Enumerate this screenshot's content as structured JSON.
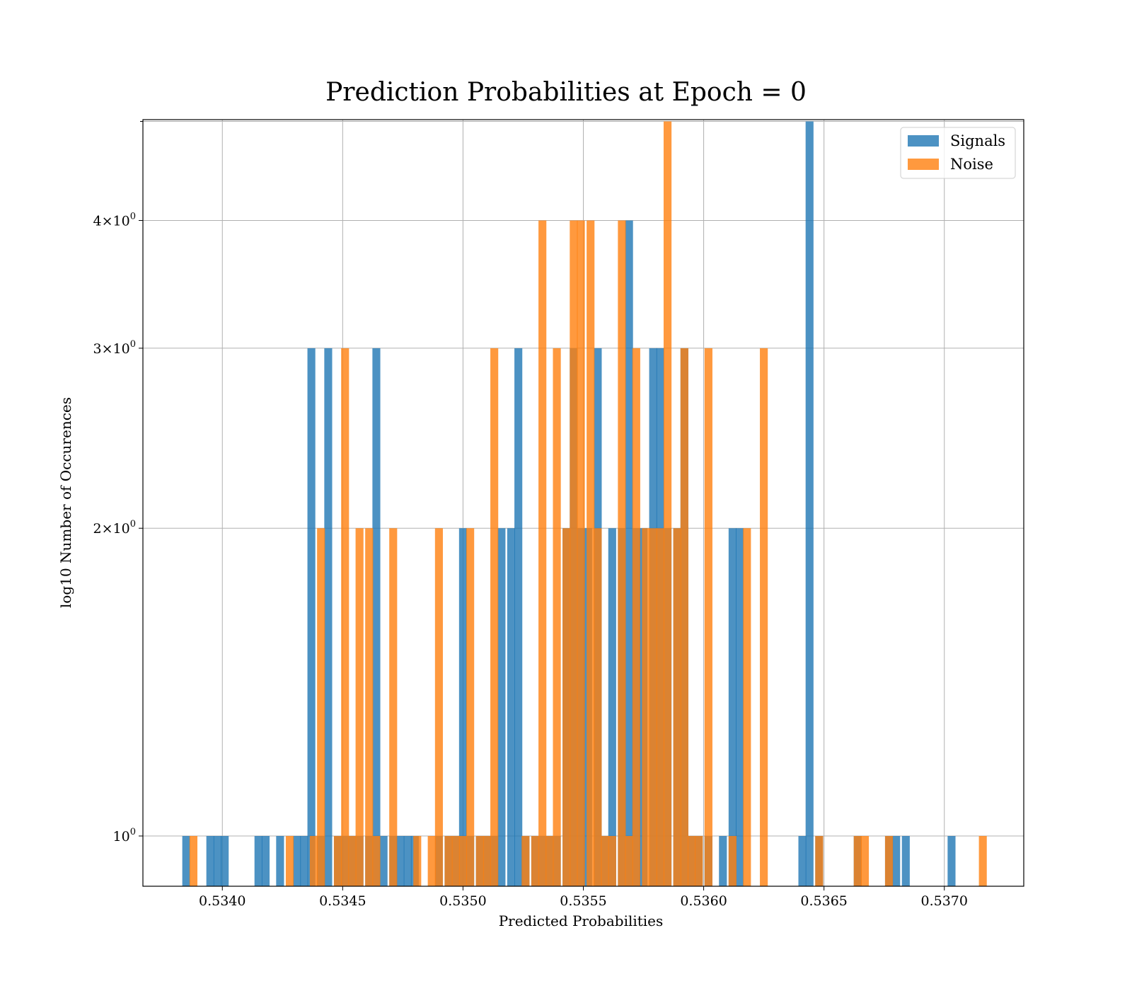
{
  "chart_data": {
    "type": "bar",
    "title": "Prediction Probabilities at Epoch = 0",
    "xlabel": "Predicted Probabilities",
    "ylabel": "log10 Number of Occurences",
    "xlim": [
      0.53367,
      0.53733
    ],
    "ylim": [
      0.893,
      5.02
    ],
    "yscale": "log",
    "grid": true,
    "bin_width": 3.28e-05,
    "xticks": [
      {
        "value": 0.534,
        "label": "0.5340"
      },
      {
        "value": 0.5345,
        "label": "0.5345"
      },
      {
        "value": 0.535,
        "label": "0.5350"
      },
      {
        "value": 0.5355,
        "label": "0.5355"
      },
      {
        "value": 0.536,
        "label": "0.5360"
      },
      {
        "value": 0.5365,
        "label": "0.5365"
      },
      {
        "value": 0.537,
        "label": "0.5370"
      }
    ],
    "yticks": [
      {
        "value": 1,
        "label": "10⁰",
        "base": "10",
        "exp": "0"
      },
      {
        "value": 2,
        "label": "2×10⁰",
        "mant": "2",
        "base": "10",
        "exp": "0"
      },
      {
        "value": 3,
        "label": "3×10⁰",
        "mant": "3",
        "base": "10",
        "exp": "0"
      },
      {
        "value": 4,
        "label": "4×10⁰",
        "mant": "4",
        "base": "10",
        "exp": "0"
      }
    ],
    "legend": {
      "position": "top-right"
    },
    "series": [
      {
        "name": "Signals",
        "color": "#1f77b4",
        "opacity": 0.8,
        "x": [
          0.53385,
          0.53395,
          0.53398,
          0.53401,
          0.53415,
          0.53418,
          0.53424,
          0.53431,
          0.53434,
          0.53437,
          0.53441,
          0.53444,
          0.53448,
          0.53451,
          0.53454,
          0.53457,
          0.53461,
          0.53464,
          0.53467,
          0.53471,
          0.53474,
          0.53477,
          0.5348,
          0.5349,
          0.53494,
          0.53497,
          0.535,
          0.53503,
          0.53507,
          0.5351,
          0.53513,
          0.53516,
          0.5352,
          0.53523,
          0.53526,
          0.5353,
          0.53533,
          0.53536,
          0.53539,
          0.53543,
          0.53546,
          0.53549,
          0.53552,
          0.53556,
          0.53559,
          0.53562,
          0.53566,
          0.53569,
          0.53572,
          0.53575,
          0.53579,
          0.53582,
          0.53585,
          0.53589,
          0.53592,
          0.53595,
          0.53598,
          0.53602,
          0.53608,
          0.53612,
          0.53615,
          0.53641,
          0.53644,
          0.53648,
          0.53664,
          0.53677,
          0.5368,
          0.53684,
          0.53703
        ],
        "values": [
          1,
          1,
          1,
          1,
          1,
          1,
          1,
          1,
          1,
          3,
          1,
          3,
          1,
          1,
          1,
          1,
          1,
          3,
          1,
          1,
          1,
          1,
          1,
          1,
          1,
          1,
          2,
          1,
          1,
          1,
          1,
          2,
          2,
          3,
          1,
          1,
          1,
          1,
          1,
          2,
          3,
          2,
          2,
          3,
          1,
          2,
          2,
          4,
          2,
          2,
          3,
          3,
          2,
          2,
          3,
          1,
          1,
          1,
          1,
          2,
          2,
          1,
          5,
          1,
          1,
          1,
          1,
          1,
          1
        ]
      },
      {
        "name": "Noise",
        "color": "#ff7f0e",
        "opacity": 0.8,
        "x": [
          0.53388,
          0.53428,
          0.53438,
          0.53441,
          0.53448,
          0.53451,
          0.53454,
          0.53457,
          0.53461,
          0.53464,
          0.53471,
          0.53481,
          0.53487,
          0.5349,
          0.53494,
          0.53497,
          0.535,
          0.53503,
          0.53507,
          0.5351,
          0.53513,
          0.53526,
          0.5353,
          0.53533,
          0.53536,
          0.53539,
          0.53543,
          0.53546,
          0.53549,
          0.53553,
          0.53556,
          0.53559,
          0.53562,
          0.53566,
          0.53569,
          0.53572,
          0.53576,
          0.53579,
          0.53582,
          0.53585,
          0.53589,
          0.53592,
          0.53595,
          0.53598,
          0.53602,
          0.53612,
          0.53618,
          0.53625,
          0.53648,
          0.53664,
          0.53667,
          0.53677,
          0.53716
        ],
        "values": [
          1,
          1,
          1,
          2,
          1,
          3,
          1,
          2,
          2,
          1,
          2,
          1,
          1,
          2,
          1,
          1,
          1,
          2,
          1,
          1,
          3,
          1,
          1,
          4,
          1,
          3,
          2,
          4,
          4,
          4,
          2,
          1,
          1,
          4,
          1,
          3,
          2,
          2,
          2,
          5,
          2,
          3,
          1,
          1,
          3,
          1,
          2,
          3,
          1,
          1,
          1,
          1,
          1
        ]
      }
    ]
  }
}
